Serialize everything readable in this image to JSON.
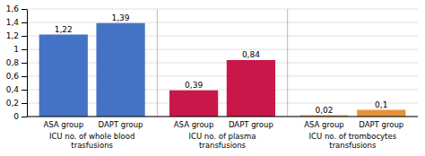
{
  "chart_data": {
    "type": "bar",
    "categories": [
      "ASA group",
      "DAPT group"
    ],
    "series": [
      {
        "name": "ICU no. of whole blood\ntrasfusions",
        "color": "#4472C4",
        "values": [
          1.22,
          1.39
        ],
        "value_labels": [
          "1,22",
          "1,39"
        ]
      },
      {
        "name": "ICU no. of plasma\ntransfusions",
        "color": "#C9174A",
        "values": [
          0.39,
          0.84
        ],
        "value_labels": [
          "0,39",
          "0,84"
        ]
      },
      {
        "name": "ICU no. of trombocytes\ntransfusions",
        "color": "#E8923A",
        "values": [
          0.02,
          0.1
        ],
        "value_labels": [
          "0,02",
          "0,1"
        ]
      }
    ],
    "ylim": [
      0,
      1.6
    ],
    "yticks": [
      0,
      {
        "value": 0.2,
        "label": "0,2"
      },
      {
        "value": 0.4,
        "label": "0,4"
      },
      {
        "value": 0.6,
        "label": "0,6"
      },
      {
        "value": 0.8,
        "label": "0,8"
      },
      1,
      {
        "value": 1.2,
        "label": "1,2"
      },
      {
        "value": 1.4,
        "label": "1,4"
      },
      {
        "value": 1.6,
        "label": "1,6"
      }
    ],
    "grid": true,
    "data_labels": true
  }
}
